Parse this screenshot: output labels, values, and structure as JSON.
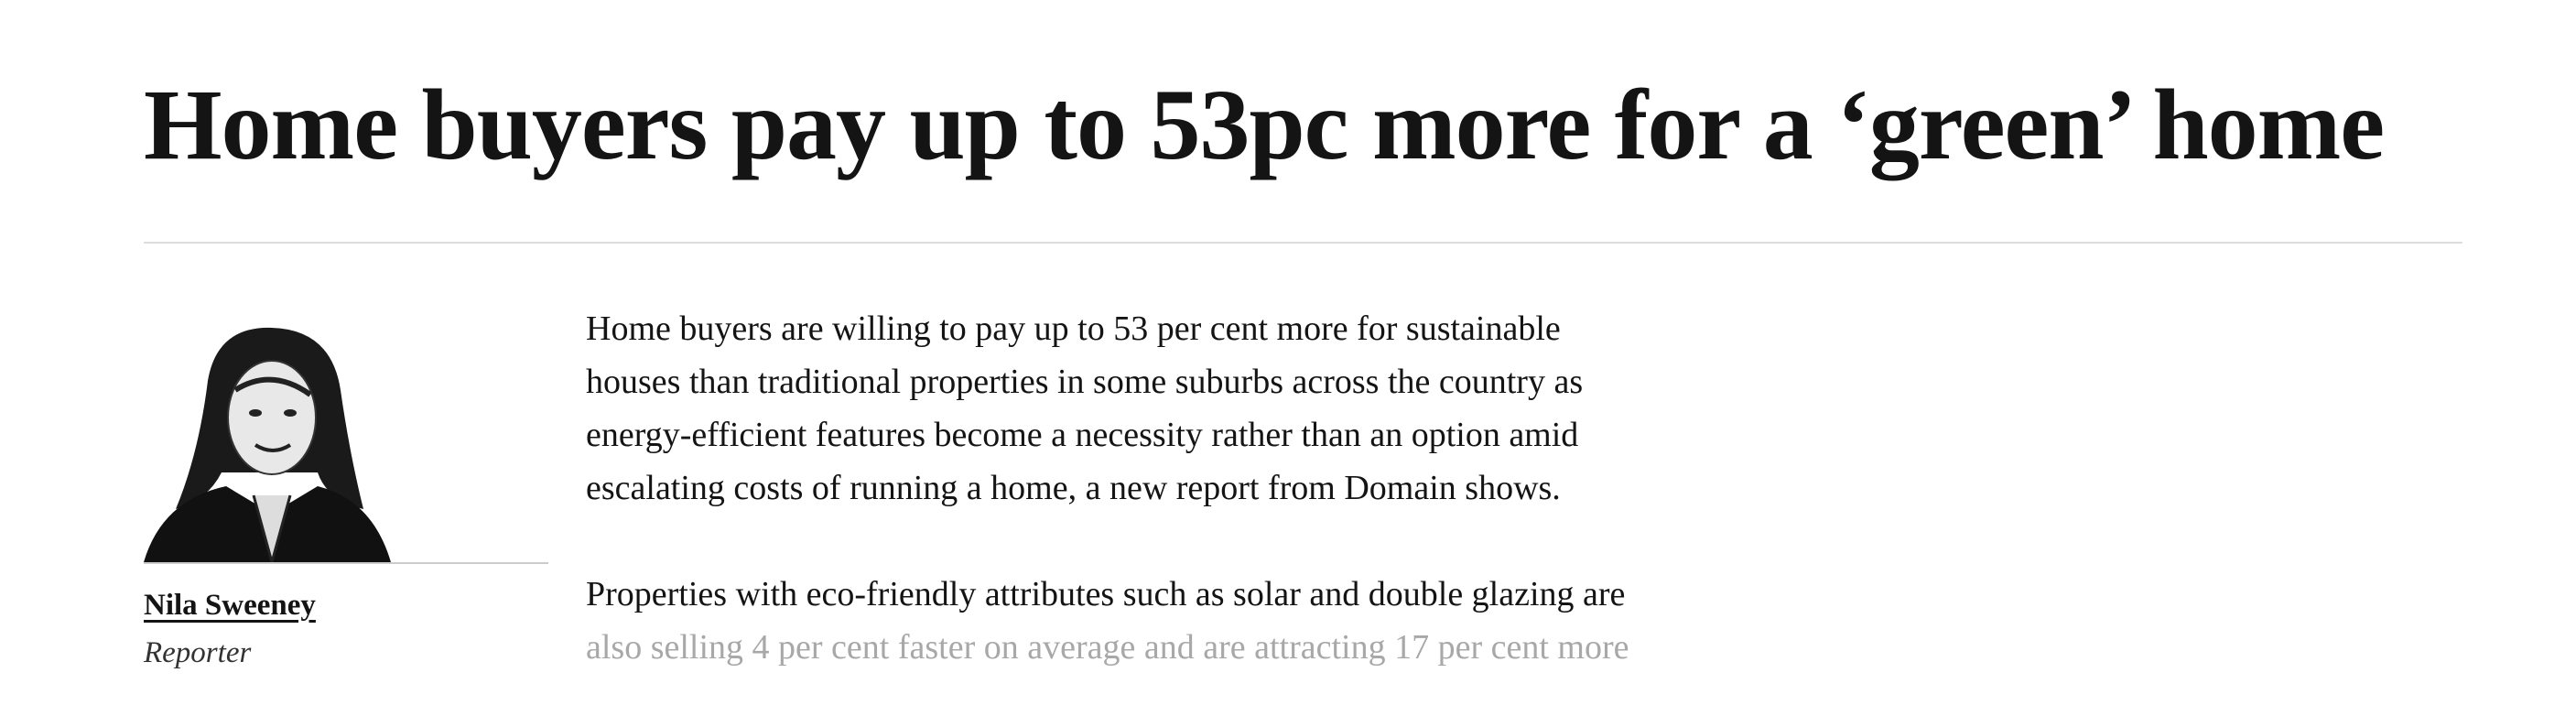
{
  "header": {
    "title": "Home buyers pay up to 53pc more for a ‘green’ home"
  },
  "author": {
    "name": "Nila Sweeney",
    "role": "Reporter"
  },
  "article": {
    "paragraphs": [
      [
        "Home buyers are willing to pay up to 53 per cent more for sustainable",
        "houses than traditional properties in some suburbs across the country as",
        "energy-efficient features become a necessity rather than an option amid",
        "escalating costs of running a home, a new report from Domain shows."
      ],
      [
        "Properties with eco-friendly attributes such as solar and double glazing are",
        "also selling 4 per cent faster on average and are attracting 17 per cent more"
      ]
    ]
  }
}
